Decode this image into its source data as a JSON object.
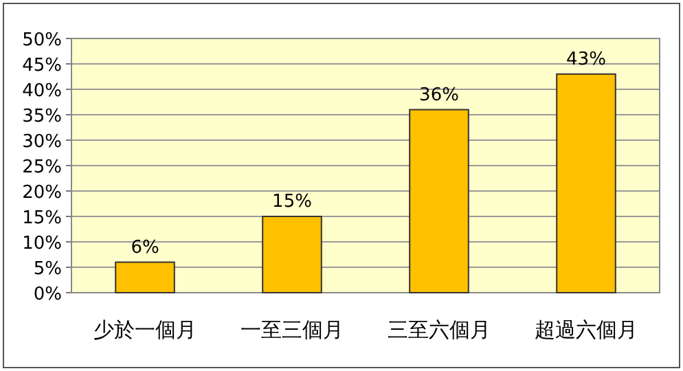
{
  "chart_data": {
    "type": "bar",
    "categories": [
      "少於一個月",
      "一至三個月",
      "三至六個月",
      "超過六個月"
    ],
    "values": [
      6,
      15,
      36,
      43
    ],
    "value_labels": [
      "6%",
      "15%",
      "36%",
      "43%"
    ],
    "color": "#ffc000",
    "ylim": [
      0,
      50
    ],
    "yticks": [
      {
        "value": 0,
        "label": "0%"
      },
      {
        "value": 5,
        "label": "5%"
      },
      {
        "value": 10,
        "label": "10%"
      },
      {
        "value": 15,
        "label": "15%"
      },
      {
        "value": 20,
        "label": "20%"
      },
      {
        "value": 25,
        "label": "25%"
      },
      {
        "value": 30,
        "label": "30%"
      },
      {
        "value": 35,
        "label": "35%"
      },
      {
        "value": 40,
        "label": "40%"
      },
      {
        "value": 45,
        "label": "45%"
      },
      {
        "value": 50,
        "label": "50%"
      }
    ],
    "grid": "y"
  }
}
